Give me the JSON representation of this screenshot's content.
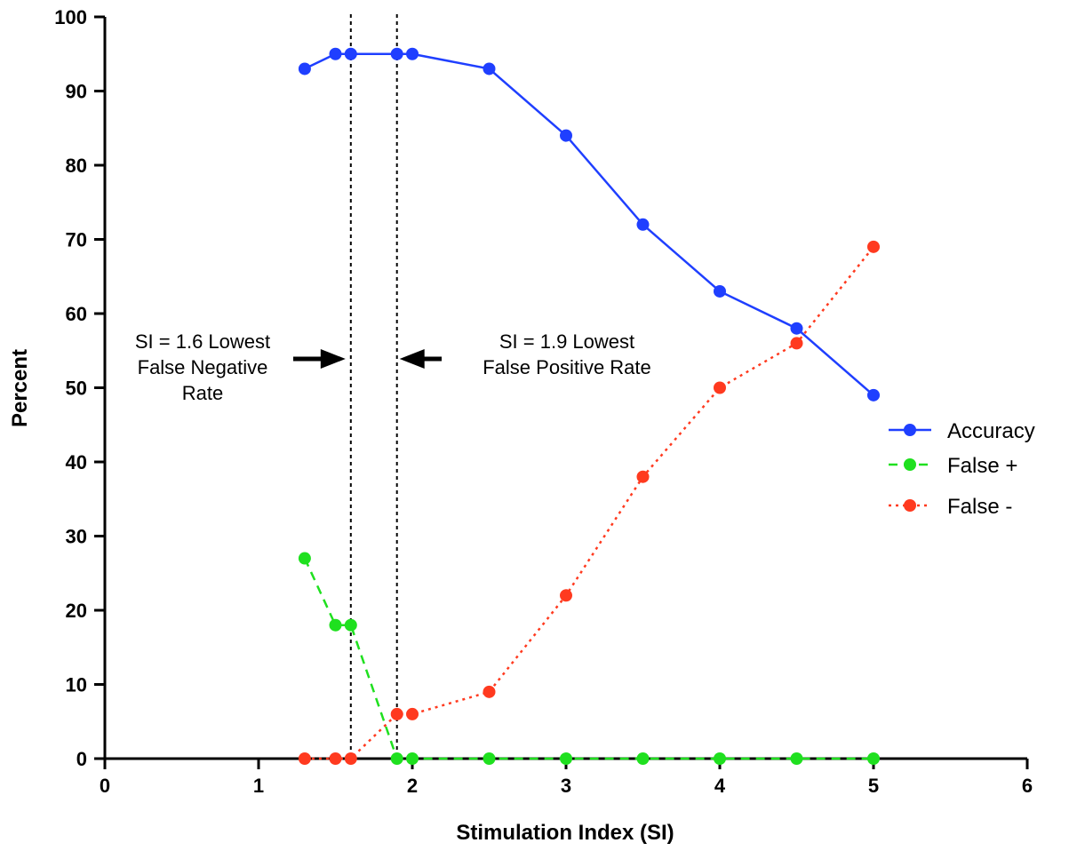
{
  "chart_data": {
    "type": "line",
    "title": "",
    "xlabel": "Stimulation Index (SI)",
    "ylabel": "Percent",
    "xlim": [
      0,
      6
    ],
    "ylim": [
      0,
      100
    ],
    "x_ticks": [
      0,
      1,
      2,
      3,
      4,
      5,
      6
    ],
    "y_ticks": [
      0,
      10,
      20,
      30,
      40,
      50,
      60,
      70,
      80,
      90,
      100
    ],
    "grid": false,
    "legend_position": "right",
    "series": [
      {
        "name": "Accuracy",
        "color": "#1f3fff",
        "line_style": "solid",
        "x": [
          1.3,
          1.5,
          1.6,
          1.9,
          2.0,
          2.5,
          3.0,
          3.5,
          4.0,
          4.5,
          5.0
        ],
        "y": [
          93,
          95,
          95,
          95,
          95,
          93,
          84,
          72,
          63,
          58,
          49
        ]
      },
      {
        "name": "False +",
        "color": "#1fe01f",
        "line_style": "dashed",
        "x": [
          1.3,
          1.5,
          1.6,
          1.9,
          2.0,
          2.5,
          3.0,
          3.5,
          4.0,
          4.5,
          5.0
        ],
        "y": [
          27,
          18,
          18,
          0,
          0,
          0,
          0,
          0,
          0,
          0,
          0
        ]
      },
      {
        "name": "False -",
        "color": "#ff3a1f",
        "line_style": "dotted",
        "x": [
          1.3,
          1.5,
          1.6,
          1.9,
          2.0,
          2.5,
          3.0,
          3.5,
          4.0,
          4.5,
          5.0
        ],
        "y": [
          0,
          0,
          0,
          6,
          6,
          9,
          22,
          38,
          50,
          56,
          69
        ]
      }
    ],
    "reference_lines": [
      {
        "axis": "x",
        "value": 1.6,
        "style": "dotted",
        "color": "#000000"
      },
      {
        "axis": "x",
        "value": 1.9,
        "style": "dotted",
        "color": "#000000"
      }
    ],
    "annotations": [
      {
        "lines": [
          "SI = 1.6 Lowest",
          "False Negative",
          "Rate"
        ],
        "arrow_to": 1.6,
        "arrow_direction": "right"
      },
      {
        "lines": [
          "SI = 1.9  Lowest",
          "False Positive Rate"
        ],
        "arrow_to": 1.9,
        "arrow_direction": "left"
      }
    ]
  }
}
